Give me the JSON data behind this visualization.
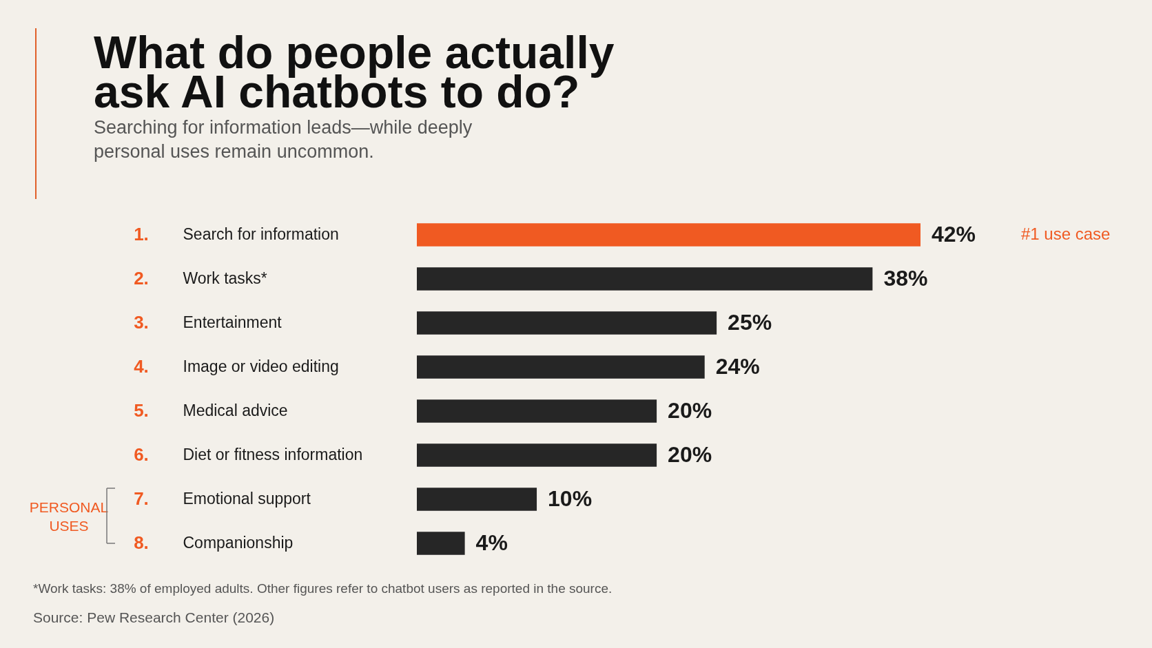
{
  "chart_data": {
    "type": "bar",
    "orientation": "horizontal",
    "title": "What do people actually ask AI chatbots to do?",
    "subtitle": "Searching for information leads—while deeply personal uses remain uncommon.",
    "categories": [
      "Search for information",
      "Work tasks*",
      "Entertainment",
      "Image or video editing",
      "Medical advice",
      "Diet or fitness information",
      "Emotional support",
      "Companionship"
    ],
    "values": [
      42,
      38,
      25,
      24,
      20,
      20,
      10,
      4
    ],
    "colors": [
      "#f05a22",
      "#262626",
      "#262626",
      "#262626",
      "#262626",
      "#262626",
      "#262626",
      "#262626"
    ],
    "value_labels": [
      "42%",
      "38%",
      "25%",
      "24%",
      "20%",
      "20%",
      "10%",
      "4%"
    ],
    "annotations": [
      "1.",
      "2.",
      "3.",
      "4.",
      "5.",
      "6.",
      "7.",
      "8.",
      "#1 use case",
      "PERSONAL USES",
      "*Work tasks: 38% of employed adults. Other figures refer to chatbot users as reported in the source.",
      "Source: Pew Research Center (2026)"
    ],
    "grid": false
  }
}
